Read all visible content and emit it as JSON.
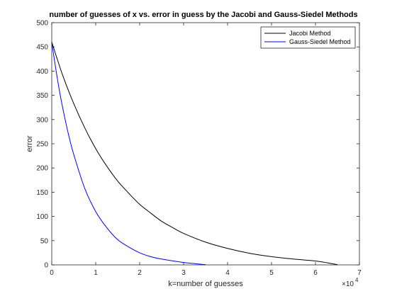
{
  "chart_data": {
    "type": "line",
    "title": "number of guesses of x vs. error in guess by the Jacobi and Gauss-Siedel Methods",
    "xlabel": "k=number of guesses",
    "ylabel": "error",
    "xlim": [
      0,
      7
    ],
    "ylim": [
      0,
      500
    ],
    "x_exponent_label": "×10",
    "x_exponent_power": "4",
    "xticks": [
      0,
      1,
      2,
      3,
      4,
      5,
      6,
      7
    ],
    "yticks": [
      0,
      50,
      100,
      150,
      200,
      250,
      300,
      350,
      400,
      450,
      500
    ],
    "grid": false,
    "legend_position": "top-right",
    "series": [
      {
        "name": "Jacobi Method",
        "color": "#000000",
        "x": [
          0,
          0.25,
          0.5,
          0.75,
          1.0,
          1.25,
          1.5,
          1.75,
          2.0,
          2.25,
          2.5,
          2.75,
          3.0,
          3.5,
          4.0,
          4.5,
          5.0,
          5.5,
          6.0,
          6.5
        ],
        "y": [
          460,
          391,
          333,
          283,
          240,
          204,
          173,
          148,
          125,
          107,
          90,
          77,
          65,
          47,
          34,
          24,
          17,
          12,
          8,
          0.5
        ]
      },
      {
        "name": "Gauss-Siedel Method",
        "color": "#0000ff",
        "x": [
          0,
          0.1,
          0.2,
          0.3,
          0.4,
          0.5,
          0.75,
          1.0,
          1.25,
          1.5,
          1.75,
          2.0,
          2.25,
          2.5,
          3.0,
          3.5
        ],
        "y": [
          460,
          400,
          347,
          302,
          262,
          228,
          158,
          110,
          77,
          52,
          37,
          25,
          17,
          12,
          5,
          0.5
        ]
      }
    ]
  }
}
